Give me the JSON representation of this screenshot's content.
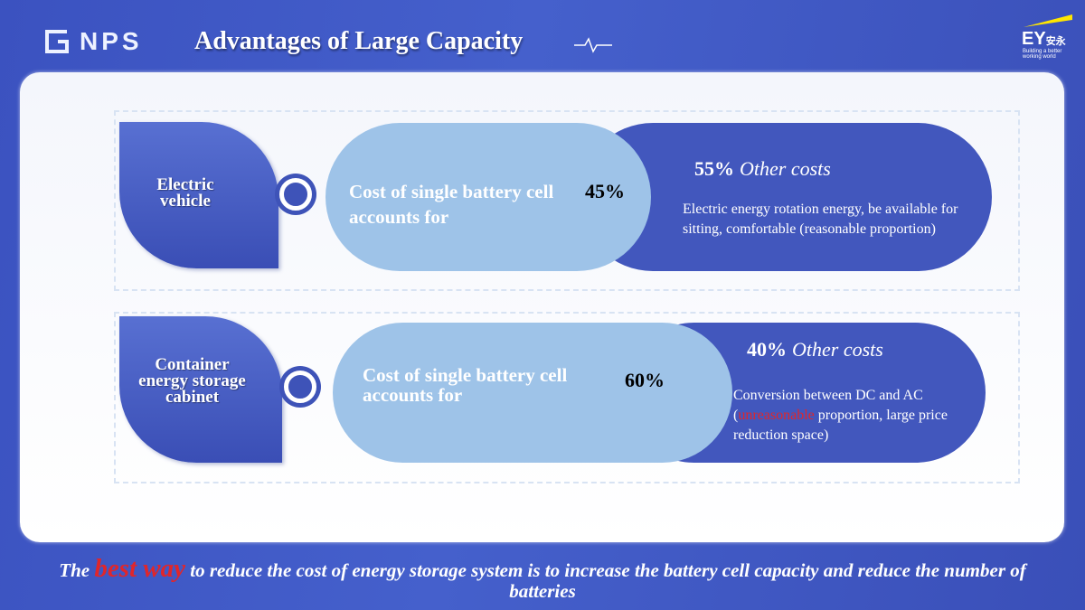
{
  "header": {
    "logo_text": "NPS",
    "title": "Advantages of Large Capacity",
    "brand_mark": "EY",
    "brand_chinese": "安永",
    "brand_tagline": "Building a better working world"
  },
  "rows": [
    {
      "label": "Electric vehicle",
      "cost_label": "Cost of single battery cell accounts for",
      "cost_percent": "45%",
      "other_percent": "55%",
      "other_label": "Other costs",
      "description": "Electric energy rotation energy, be available for sitting, comfortable (reasonable proportion)"
    },
    {
      "label": "Container energy storage cabinet",
      "cost_label": "Cost of single battery cell accounts for",
      "cost_percent": "60%",
      "other_percent": "40%",
      "other_label": "Other costs",
      "description_pre": "Conversion between DC and AC (",
      "description_highlight": "unreasonable",
      "description_post": " proportion, large price reduction space)"
    }
  ],
  "footer": {
    "pre": "The ",
    "highlight": "best way",
    "post": " to reduce the cost of energy storage system is to increase the battery cell capacity and reduce the number of batteries"
  },
  "colors": {
    "background": "#3f56c3",
    "dark_pill": "#4257bd",
    "light_pill": "#9ec3e8",
    "highlight_red": "#e0262b"
  },
  "icons": [
    "nps-logo-icon",
    "pulse-line-icon",
    "ey-logo-icon",
    "ring-bullet-icon"
  ]
}
